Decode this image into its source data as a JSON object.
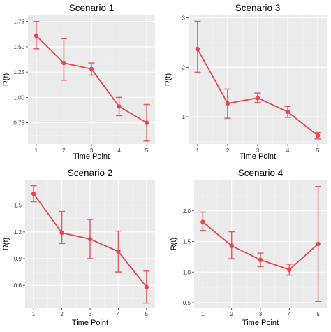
{
  "figure": {
    "background": "#ffffff",
    "panel_background": "#ebebeb",
    "grid_major_color": "#ffffff",
    "grid_minor_color": "#f4f4f4",
    "series_color": "#e8474f",
    "errorbar_color": "#e35d63"
  },
  "chart_data": [
    {
      "type": "line",
      "title": "Scenario 1",
      "xlabel": "Time Point",
      "ylabel": "R(t)",
      "x": [
        1,
        2,
        3,
        4,
        5
      ],
      "x_ticks": [
        "1",
        "2",
        "3",
        "4",
        "5"
      ],
      "y": [
        1.61,
        1.34,
        1.28,
        0.91,
        0.75
      ],
      "y_lower": [
        1.48,
        1.17,
        1.22,
        0.82,
        0.57
      ],
      "y_upper": [
        1.75,
        1.58,
        1.34,
        1.0,
        0.93
      ],
      "xlim": [
        0.7,
        5.3
      ],
      "ylim": [
        0.54,
        1.81
      ],
      "y_ticks": [
        0.75,
        1.0,
        1.25,
        1.5,
        1.75
      ],
      "y_tick_labels": [
        "0.75",
        "1.00",
        "1.25",
        "1.50",
        "1.75"
      ],
      "grid": true,
      "error_bars": true
    },
    {
      "type": "line",
      "title": "Scenario 3",
      "xlabel": "Time Point",
      "ylabel": "R(t)",
      "x": [
        1,
        2,
        3,
        4,
        5
      ],
      "x_ticks": [
        "1",
        "2",
        "3",
        "4",
        "5"
      ],
      "y": [
        2.37,
        1.27,
        1.38,
        1.1,
        0.62
      ],
      "y_lower": [
        1.9,
        0.97,
        1.29,
        0.99,
        0.55
      ],
      "y_upper": [
        2.93,
        1.56,
        1.48,
        1.21,
        0.68
      ],
      "xlim": [
        0.7,
        5.3
      ],
      "ylim": [
        0.45,
        3.05
      ],
      "y_ticks": [
        1,
        2,
        3
      ],
      "y_tick_labels": [
        "1",
        "2",
        "3"
      ],
      "grid": true,
      "error_bars": true
    },
    {
      "type": "line",
      "title": "Scenario 2",
      "xlabel": "Time Point",
      "ylabel": "R(t)",
      "x": [
        1,
        2,
        3,
        4,
        5
      ],
      "x_ticks": [
        "1",
        "2",
        "3",
        "4",
        "5"
      ],
      "y": [
        1.63,
        1.19,
        1.12,
        0.98,
        0.58
      ],
      "y_lower": [
        1.54,
        1.07,
        0.9,
        0.75,
        0.4
      ],
      "y_upper": [
        1.72,
        1.43,
        1.34,
        1.21,
        0.76
      ],
      "xlim": [
        0.7,
        5.3
      ],
      "ylim": [
        0.35,
        1.78
      ],
      "y_ticks": [
        0.6,
        0.9,
        1.2,
        1.5
      ],
      "y_tick_labels": [
        "0.6",
        "0.9",
        "1.2",
        "1.5"
      ],
      "grid": true,
      "error_bars": true
    },
    {
      "type": "line",
      "title": "Scenario 4",
      "xlabel": "Time Point",
      "ylabel": "R(t)",
      "x": [
        1,
        2,
        3,
        4,
        5
      ],
      "x_ticks": [
        "1",
        "2",
        "3",
        "4",
        "5"
      ],
      "y": [
        1.82,
        1.43,
        1.2,
        1.04,
        1.46
      ],
      "y_lower": [
        1.68,
        1.22,
        1.09,
        0.95,
        0.52
      ],
      "y_upper": [
        1.98,
        1.66,
        1.31,
        1.13,
        2.4
      ],
      "xlim": [
        0.7,
        5.3
      ],
      "ylim": [
        0.42,
        2.5
      ],
      "y_ticks": [
        0.5,
        1.0,
        1.5,
        2.0
      ],
      "y_tick_labels": [
        "0.5",
        "1.0",
        "1.5",
        "2.0"
      ],
      "grid": true,
      "error_bars": true
    }
  ]
}
